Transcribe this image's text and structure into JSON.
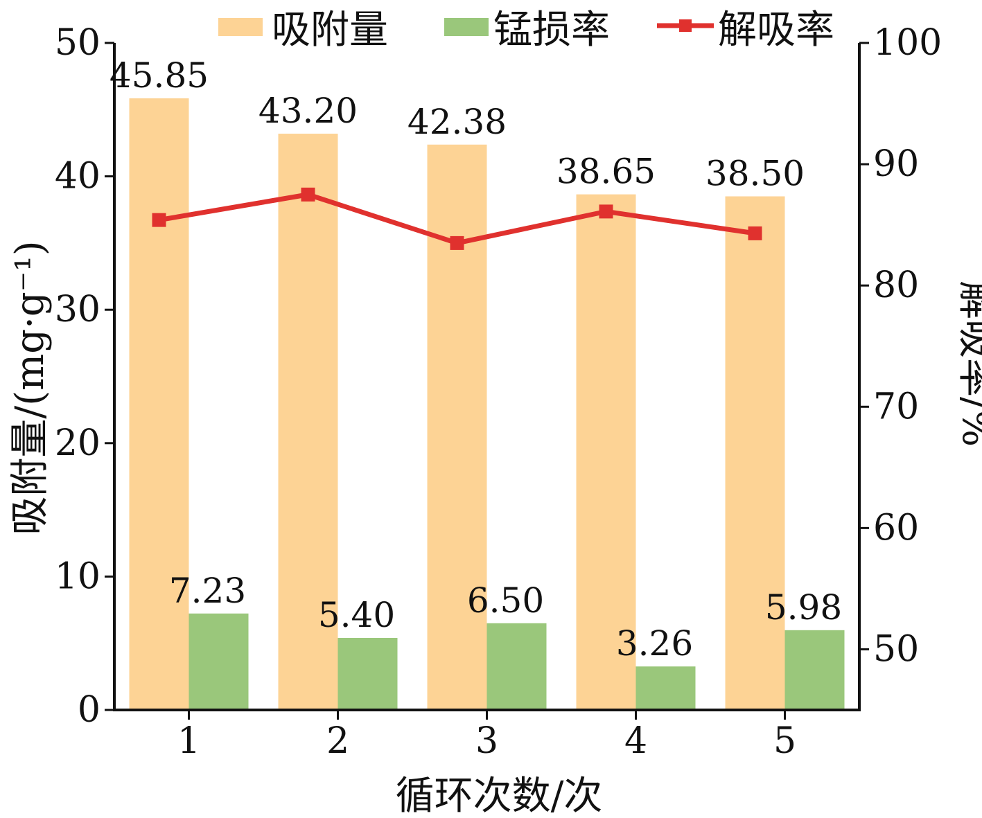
{
  "chart_data": {
    "type": "bar",
    "categories": [
      "1",
      "2",
      "3",
      "4",
      "5"
    ],
    "xlabel": "循环次数/次",
    "ylabel_left": "吸附量/(mg·g⁻¹)",
    "ylabel_right": "解吸率/%",
    "ylim_left": [
      0,
      50
    ],
    "ylim_right": [
      45,
      100
    ],
    "yticks_left": [
      "0",
      "10",
      "20",
      "30",
      "40",
      "50"
    ],
    "yticks_right": [
      "50",
      "60",
      "70",
      "80",
      "90",
      "100"
    ],
    "legend_position": "top",
    "grid": false,
    "series": [
      {
        "name": "吸附量",
        "type": "bar",
        "axis": "left",
        "color": "#FDD395",
        "values": [
          45.85,
          43.2,
          42.38,
          38.65,
          38.5
        ],
        "labels": [
          "45.85",
          "43.20",
          "42.38",
          "38.65",
          "38.50"
        ]
      },
      {
        "name": "锰损率",
        "type": "bar",
        "axis": "left",
        "color": "#9AC77B",
        "values": [
          7.23,
          5.4,
          6.5,
          3.26,
          5.98
        ],
        "labels": [
          "7.23",
          "5.40",
          "6.50",
          "3.26",
          "5.98"
        ]
      },
      {
        "name": "解吸率",
        "type": "line",
        "axis": "right",
        "color": "#E0312E",
        "marker": "square",
        "values": [
          85.4,
          87.5,
          83.5,
          86.1,
          84.3
        ]
      }
    ]
  }
}
